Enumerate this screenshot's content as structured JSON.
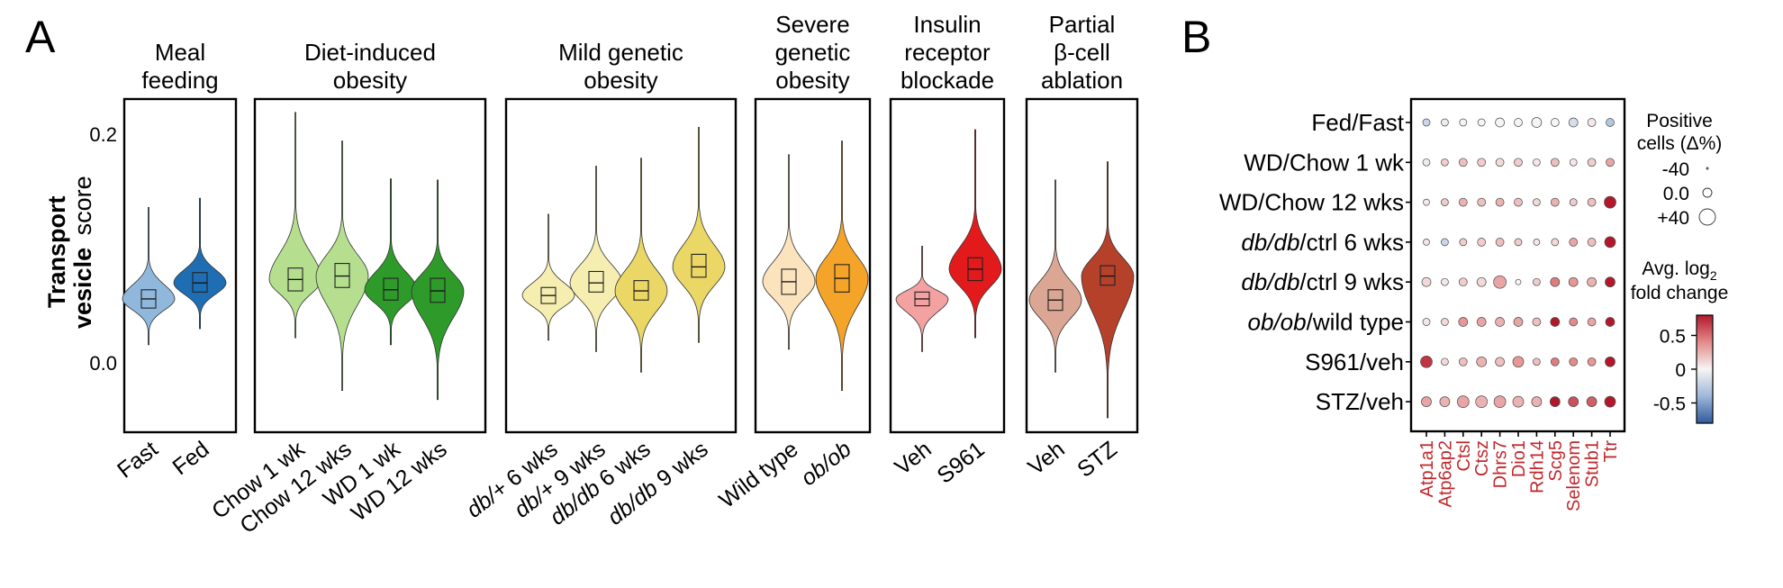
{
  "panel_a": {
    "label": "A",
    "ylabel_bold": "Transport",
    "ylabel_bold2": "vesicle",
    "ylabel_rest": "score",
    "yticks": [
      "0.2",
      "0.0"
    ]
  },
  "panel_b": {
    "label": "B",
    "size_legend": {
      "title_line1": "Positive",
      "title_line2": "cells (Δ%)",
      "items": [
        {
          "label": "-40",
          "value": -40
        },
        {
          "label": "0.0",
          "value": 0
        },
        {
          "label": "+40",
          "value": 40
        }
      ]
    },
    "color_legend": {
      "title_line1": "Avg. log",
      "title_sub": "2",
      "title_line2": "fold change",
      "ticks": [
        "0.5",
        "0",
        "-0.5"
      ]
    }
  },
  "chart_data": [
    {
      "type": "violin",
      "ylabel": "Transport vesicle score",
      "yticks": [
        0.0,
        0.2
      ],
      "ylim": [
        -0.065,
        0.228
      ],
      "groups": [
        {
          "title": [
            "Meal",
            "feeding"
          ],
          "categories": [
            "Fast",
            "Fed"
          ],
          "italic": [
            false,
            false
          ],
          "colors": [
            "#8fb8dc",
            "#1f6eb3"
          ],
          "medians": [
            0.052,
            0.066
          ],
          "q1": [
            0.044,
            0.058
          ],
          "q3": [
            0.06,
            0.075
          ],
          "mins": [
            0.012,
            0.026
          ],
          "maxs": [
            0.132,
            0.14
          ]
        },
        {
          "title": [
            "Diet-induced",
            "obesity"
          ],
          "categories": [
            "Chow 1 wk",
            "Chow 12 wks",
            "WD 1 wk",
            "WD 12 wks"
          ],
          "italic": [
            false,
            false,
            false,
            false
          ],
          "colors": [
            "#b5df8e",
            "#b5df8e",
            "#2e9a2a",
            "#2e9a2a"
          ],
          "medians": [
            0.069,
            0.072,
            0.06,
            0.059
          ],
          "q1": [
            0.059,
            0.062,
            0.051,
            0.049
          ],
          "q3": [
            0.079,
            0.083,
            0.07,
            0.07
          ],
          "mins": [
            0.018,
            -0.028,
            0.012,
            -0.036
          ],
          "maxs": [
            0.215,
            0.19,
            0.157,
            0.156
          ]
        },
        {
          "title": [
            "Mild genetic",
            "obesity"
          ],
          "categories": [
            "db/+ 6 wks",
            "db/+ 9 wks",
            "db/db 6 wks",
            "db/db 9 wks"
          ],
          "italic": [
            true,
            true,
            true,
            true
          ],
          "colors": [
            "#f6eeb0",
            "#f6eeb0",
            "#ead765",
            "#ead765"
          ],
          "medians": [
            0.055,
            0.066,
            0.059,
            0.08
          ],
          "q1": [
            0.048,
            0.058,
            0.051,
            0.071
          ],
          "q3": [
            0.062,
            0.076,
            0.068,
            0.091
          ],
          "mins": [
            0.016,
            0.006,
            -0.012,
            0.014
          ],
          "maxs": [
            0.126,
            0.168,
            0.175,
            0.202
          ]
        },
        {
          "title": [
            "Severe",
            "genetic",
            "obesity"
          ],
          "categories": [
            "Wild type",
            "ob/ob"
          ],
          "italic": [
            false,
            true
          ],
          "colors": [
            "#fbe3bd",
            "#f5a42a"
          ],
          "medians": [
            0.067,
            0.07
          ],
          "q1": [
            0.056,
            0.058
          ],
          "q3": [
            0.078,
            0.082
          ],
          "mins": [
            0.008,
            -0.028
          ],
          "maxs": [
            0.178,
            0.19
          ]
        },
        {
          "title": [
            "Insulin",
            "receptor",
            "blockade"
          ],
          "categories": [
            "Veh",
            "S961"
          ],
          "italic": [
            false,
            false
          ],
          "colors": [
            "#f4a1a1",
            "#e31a1c"
          ],
          "medians": [
            0.052,
            0.078
          ],
          "q1": [
            0.046,
            0.068
          ],
          "q3": [
            0.058,
            0.088
          ],
          "mins": [
            0.006,
            0.018
          ],
          "maxs": [
            0.098,
            0.2
          ]
        },
        {
          "title": [
            "Partial",
            "β-cell",
            "ablation"
          ],
          "categories": [
            "Veh",
            "STZ"
          ],
          "italic": [
            false,
            false
          ],
          "colors": [
            "#dca694",
            "#b5412a"
          ],
          "medians": [
            0.051,
            0.072
          ],
          "q1": [
            0.042,
            0.064
          ],
          "q3": [
            0.06,
            0.081
          ],
          "mins": [
            -0.012,
            -0.052
          ],
          "maxs": [
            0.156,
            0.172
          ]
        }
      ]
    },
    {
      "type": "dotplot",
      "rows": [
        {
          "label": "Fed/Fast",
          "italic_prefix": "",
          "text": "Fed/Fast"
        },
        {
          "label": "WD/Chow 1 wk",
          "italic_prefix": "",
          "text": "WD/Chow 1 wk"
        },
        {
          "label": "WD/Chow 12 wks",
          "italic_prefix": "",
          "text": "WD/Chow 12 wks"
        },
        {
          "label": "db/db/ctrl 6 wks",
          "italic_prefix": "db/db",
          "text": "/ctrl 6 wks"
        },
        {
          "label": "db/db/ctrl 9 wks",
          "italic_prefix": "db/db",
          "text": "/ctrl 9 wks"
        },
        {
          "label": "ob/ob/wild type",
          "italic_prefix": "ob/ob",
          "text": "/wild type"
        },
        {
          "label": "S961/veh",
          "italic_prefix": "",
          "text": "S961/veh"
        },
        {
          "label": "STZ/veh",
          "italic_prefix": "",
          "text": "STZ/veh"
        }
      ],
      "columns": [
        "Atp1a1",
        "Atp6ap2",
        "Ctsl",
        "Ctsz",
        "Dhrs7",
        "Dio1",
        "Rdh14",
        "Scg5",
        "Selenom",
        "Stub1",
        "Ttr"
      ],
      "fold_change": [
        [
          -0.2,
          -0.05,
          0.0,
          0.0,
          0.0,
          0.0,
          0.0,
          0.0,
          -0.15,
          0.05,
          -0.3
        ],
        [
          -0.05,
          0.15,
          0.2,
          0.15,
          0.1,
          0.15,
          0.05,
          0.2,
          0.05,
          0.15,
          0.3
        ],
        [
          0.05,
          0.15,
          0.25,
          0.2,
          0.25,
          0.2,
          0.1,
          0.25,
          0.15,
          0.2,
          0.95
        ],
        [
          0.05,
          -0.2,
          0.15,
          0.15,
          0.2,
          0.15,
          0.05,
          0.1,
          0.3,
          0.2,
          0.9
        ],
        [
          0.1,
          0.05,
          0.15,
          0.1,
          0.3,
          0.0,
          0.15,
          0.45,
          0.35,
          0.25,
          0.85
        ],
        [
          0.05,
          0.1,
          0.35,
          0.3,
          0.25,
          0.3,
          0.2,
          0.85,
          0.4,
          0.3,
          0.9
        ],
        [
          0.7,
          0.1,
          0.2,
          0.25,
          0.2,
          0.35,
          0.2,
          0.45,
          0.4,
          0.35,
          0.85
        ],
        [
          0.3,
          0.25,
          0.3,
          0.25,
          0.3,
          0.25,
          0.25,
          0.85,
          0.6,
          0.55,
          0.9
        ]
      ],
      "delta_pct": [
        [
          -10,
          -10,
          -10,
          -10,
          0,
          -5,
          5,
          -5,
          0,
          -5,
          -5
        ],
        [
          -10,
          -10,
          -5,
          -5,
          -5,
          -5,
          -10,
          -5,
          -10,
          -5,
          -5
        ],
        [
          -15,
          -10,
          -5,
          -5,
          -5,
          -5,
          -10,
          -5,
          -10,
          -5,
          15
        ],
        [
          -15,
          -10,
          -10,
          -5,
          -5,
          -10,
          -15,
          -10,
          -5,
          -5,
          10
        ],
        [
          0,
          -10,
          -5,
          0,
          20,
          -20,
          -10,
          0,
          0,
          0,
          5
        ],
        [
          -10,
          -10,
          0,
          0,
          0,
          0,
          -5,
          0,
          -5,
          -5,
          0
        ],
        [
          15,
          -10,
          -5,
          5,
          0,
          10,
          -10,
          -5,
          -5,
          -5,
          5
        ],
        [
          5,
          5,
          15,
          15,
          15,
          10,
          5,
          5,
          5,
          5,
          10
        ]
      ],
      "size_range": [
        -40,
        40
      ],
      "color_range": [
        -0.8,
        0.8
      ],
      "colorbar_ticks": [
        0.5,
        0,
        -0.5
      ]
    }
  ]
}
